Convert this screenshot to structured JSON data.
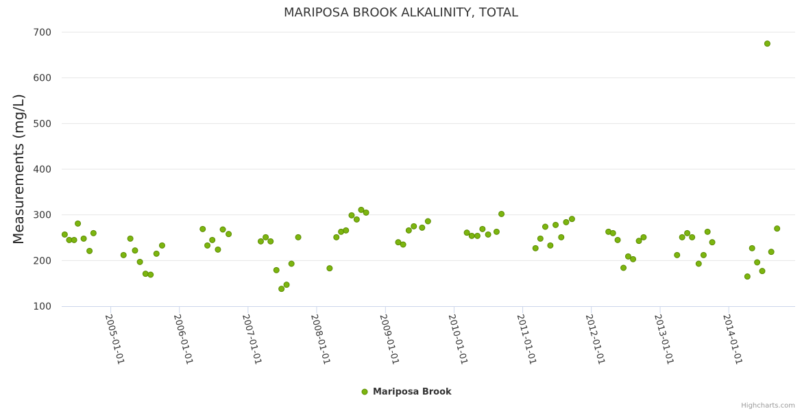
{
  "chart_data": {
    "type": "scatter",
    "title": "MARIPOSA BROOK ALKALINITY, TOTAL",
    "xlabel": "",
    "ylabel": "Measurements (mg/L)",
    "ylim": [
      100,
      700
    ],
    "yticks": [
      100,
      200,
      300,
      400,
      500,
      600,
      700
    ],
    "xticks": [
      "2005-01-01",
      "2006-01-01",
      "2007-01-01",
      "2008-01-01",
      "2009-01-01",
      "2010-01-01",
      "2011-01-01",
      "2012-01-01",
      "2013-01-01",
      "2014-01-01"
    ],
    "xlim": [
      "2004-04-15",
      "2014-12-20"
    ],
    "grid": true,
    "legend_position": "bottom-center",
    "series": [
      {
        "name": "Mariposa Brook",
        "color": "#7cb50f",
        "points": [
          [
            "2004-05-01",
            257
          ],
          [
            "2004-05-25",
            245
          ],
          [
            "2004-06-20",
            245
          ],
          [
            "2004-07-10",
            281
          ],
          [
            "2004-08-10",
            248
          ],
          [
            "2004-09-10",
            221
          ],
          [
            "2004-10-01",
            260
          ],
          [
            "2005-03-10",
            212
          ],
          [
            "2005-04-15",
            248
          ],
          [
            "2005-05-10",
            222
          ],
          [
            "2005-06-05",
            197
          ],
          [
            "2005-07-05",
            171
          ],
          [
            "2005-08-01",
            169
          ],
          [
            "2005-09-01",
            215
          ],
          [
            "2005-10-01",
            233
          ],
          [
            "2006-05-05",
            269
          ],
          [
            "2006-05-30",
            233
          ],
          [
            "2006-06-25",
            245
          ],
          [
            "2006-07-25",
            224
          ],
          [
            "2006-08-20",
            268
          ],
          [
            "2006-09-20",
            258
          ],
          [
            "2007-03-10",
            242
          ],
          [
            "2007-04-05",
            251
          ],
          [
            "2007-05-01",
            242
          ],
          [
            "2007-06-01",
            179
          ],
          [
            "2007-06-28",
            138
          ],
          [
            "2007-07-25",
            147
          ],
          [
            "2007-08-20",
            193
          ],
          [
            "2007-09-25",
            251
          ],
          [
            "2008-03-10",
            183
          ],
          [
            "2008-04-15",
            251
          ],
          [
            "2008-05-10",
            263
          ],
          [
            "2008-06-05",
            266
          ],
          [
            "2008-07-05",
            299
          ],
          [
            "2008-08-01",
            290
          ],
          [
            "2008-08-25",
            311
          ],
          [
            "2008-09-20",
            305
          ],
          [
            "2009-03-10",
            240
          ],
          [
            "2009-04-05",
            235
          ],
          [
            "2009-05-05",
            266
          ],
          [
            "2009-06-01",
            275
          ],
          [
            "2009-07-15",
            272
          ],
          [
            "2009-08-15",
            286
          ],
          [
            "2010-03-10",
            261
          ],
          [
            "2010-04-05",
            254
          ],
          [
            "2010-05-05",
            254
          ],
          [
            "2010-06-01",
            269
          ],
          [
            "2010-07-01",
            257
          ],
          [
            "2010-08-15",
            263
          ],
          [
            "2010-09-10",
            302
          ],
          [
            "2011-03-10",
            227
          ],
          [
            "2011-04-05",
            248
          ],
          [
            "2011-05-01",
            274
          ],
          [
            "2011-05-28",
            233
          ],
          [
            "2011-06-25",
            278
          ],
          [
            "2011-07-25",
            251
          ],
          [
            "2011-08-20",
            284
          ],
          [
            "2011-09-20",
            291
          ],
          [
            "2012-04-01",
            263
          ],
          [
            "2012-04-25",
            260
          ],
          [
            "2012-05-20",
            245
          ],
          [
            "2012-06-20",
            184
          ],
          [
            "2012-07-15",
            209
          ],
          [
            "2012-08-10",
            203
          ],
          [
            "2012-09-10",
            243
          ],
          [
            "2012-10-05",
            251
          ],
          [
            "2013-04-01",
            212
          ],
          [
            "2013-04-28",
            251
          ],
          [
            "2013-05-25",
            260
          ],
          [
            "2013-06-20",
            251
          ],
          [
            "2013-07-25",
            193
          ],
          [
            "2013-08-20",
            212
          ],
          [
            "2013-09-10",
            263
          ],
          [
            "2013-10-05",
            240
          ],
          [
            "2014-04-10",
            165
          ],
          [
            "2014-05-05",
            227
          ],
          [
            "2014-06-01",
            196
          ],
          [
            "2014-06-28",
            177
          ],
          [
            "2014-07-25",
            675
          ],
          [
            "2014-08-15",
            219
          ],
          [
            "2014-09-15",
            270
          ]
        ]
      }
    ]
  },
  "credit": "Highcharts.com"
}
